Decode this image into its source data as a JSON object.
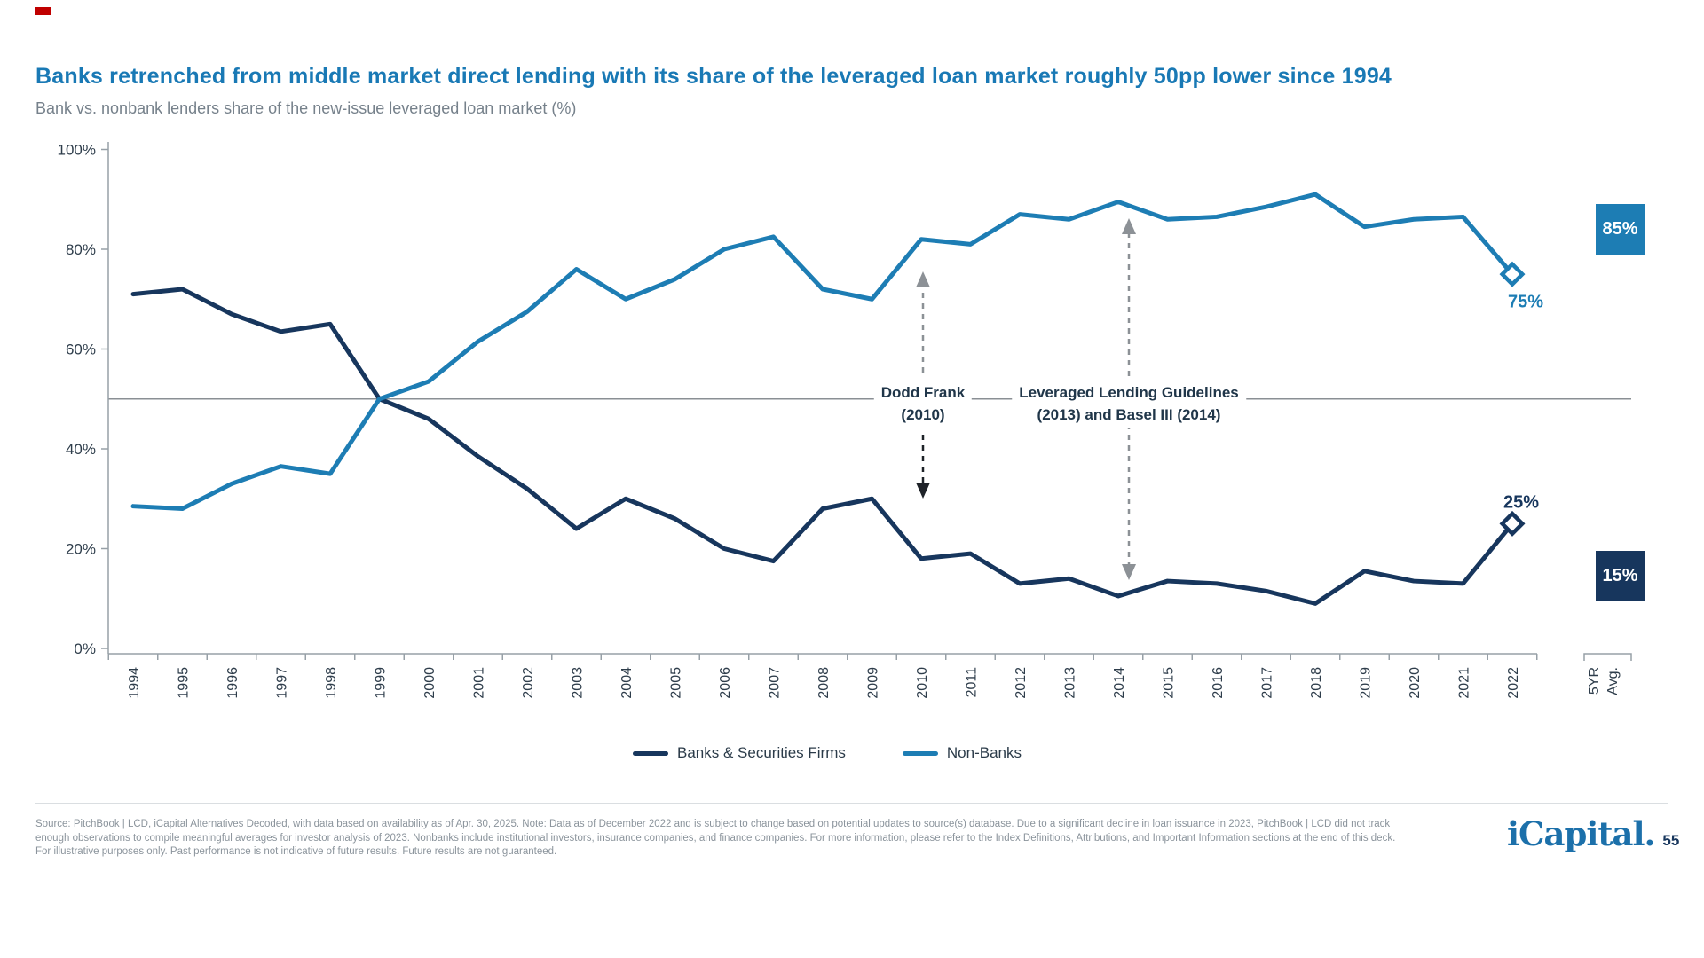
{
  "page": {
    "accent_color": "#C00000",
    "background": "#FFFFFF"
  },
  "header": {
    "title": "Banks retrenched from middle market direct lending with its share of the leveraged loan market roughly 50pp lower since 1994",
    "subtitle": "Bank vs. nonbank lenders share of the new-issue leveraged loan market (%)"
  },
  "chart_data": {
    "type": "line",
    "x_labels": [
      "1994",
      "1995",
      "1996",
      "1997",
      "1998",
      "1999",
      "2000",
      "2001",
      "2002",
      "2003",
      "2004",
      "2005",
      "2006",
      "2007",
      "2008",
      "2009",
      "2010",
      "2011",
      "2012",
      "2013",
      "2014",
      "2015",
      "2016",
      "2017",
      "2018",
      "2019",
      "2020",
      "2021",
      "2022"
    ],
    "avg_column_label": [
      "5YR",
      "Avg."
    ],
    "y_ticks": [
      0,
      20,
      40,
      60,
      80,
      100
    ],
    "y_tick_suffix": "%",
    "ylim": [
      0,
      100
    ],
    "reference_line_y": 50,
    "grid": false,
    "legend_position": "bottom",
    "series": [
      {
        "name": "Banks & Securities Firms",
        "color": "#17365D",
        "values": [
          71,
          72,
          67,
          63.5,
          65,
          50,
          46,
          38.5,
          32,
          24,
          30,
          26,
          20,
          17.5,
          28,
          30,
          18,
          19,
          13,
          14,
          10.5,
          13.5,
          13,
          11.5,
          9,
          15.5,
          13.5,
          13,
          25
        ],
        "end_value_label": "25%",
        "five_yr_avg_label": "15%"
      },
      {
        "name": "Non-Banks",
        "color": "#1D7DB4",
        "values": [
          28.5,
          28,
          33,
          36.5,
          35,
          50,
          53.5,
          61.5,
          67.5,
          76,
          70,
          74,
          80,
          82.5,
          72,
          70,
          82,
          81,
          87,
          86,
          89.5,
          86,
          86.5,
          88.5,
          91,
          84.5,
          86,
          86.5,
          75
        ],
        "end_value_label": "75%",
        "five_yr_avg_label": "85%"
      }
    ],
    "annotations": [
      {
        "line1": "Dodd Frank",
        "line2": "(2010)"
      },
      {
        "line1": "Leveraged Lending Guidelines",
        "line2": "(2013) and Basel III (2014)"
      }
    ]
  },
  "legend": {
    "items": [
      {
        "label": "Banks & Securities Firms",
        "color": "#17365D"
      },
      {
        "label": "Non-Banks",
        "color": "#1D7DB4"
      }
    ]
  },
  "footer": {
    "lines": [
      "Source: PitchBook | LCD, iCapital Alternatives Decoded, with data based on availability as of Apr. 30, 2025. Note: Data as of December 2022 and is subject to change based on potential updates to source(s) database. Due to a significant decline in loan issuance in 2023, PitchBook | LCD did not track",
      "enough observations to compile meaningful averages for investor analysis of 2023. Nonbanks include institutional investors, insurance companies, and finance companies. For more information, please refer to the Index Definitions, Attributions, and Important Information sections at the end of this deck.",
      "For illustrative purposes only. Past performance is not indicative of future results. Future results are not guaranteed."
    ],
    "logo_text": "iCapital.",
    "page_number": "55"
  }
}
